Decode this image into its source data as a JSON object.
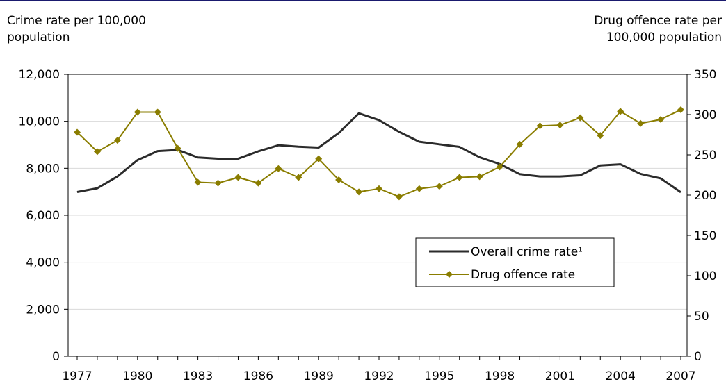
{
  "chart_data": {
    "type": "line",
    "x": [
      1977,
      1978,
      1979,
      1980,
      1981,
      1982,
      1983,
      1984,
      1985,
      1986,
      1987,
      1988,
      1989,
      1990,
      1991,
      1992,
      1993,
      1994,
      1995,
      1996,
      1997,
      1998,
      1999,
      2000,
      2001,
      2002,
      2003,
      2004,
      2005,
      2006,
      2007
    ],
    "x_tick_labels": [
      "1977",
      "1980",
      "1983",
      "1986",
      "1989",
      "1992",
      "1995",
      "1998",
      "2001",
      "2004",
      "2007"
    ],
    "ylabel_left": "Crime rate per 100,000\npopulation",
    "ylabel_right": "Drug offence rate per\n100,000 population",
    "ylim_left": [
      0,
      12000
    ],
    "ylim_right": [
      0,
      350
    ],
    "y_left_ticks": [
      "0",
      "2,000",
      "4,000",
      "6,000",
      "8,000",
      "10,000",
      "12,000"
    ],
    "y_right_ticks": [
      "0",
      "50",
      "100",
      "150",
      "200",
      "250",
      "300",
      "350"
    ],
    "grid": true,
    "legend_position": "lower-right",
    "series": [
      {
        "name": "Overall crime rate¹",
        "axis": "left",
        "color": "#2b2b2b",
        "marker": "none",
        "values": [
          6990,
          7150,
          7650,
          8350,
          8730,
          8780,
          8460,
          8410,
          8410,
          8720,
          8980,
          8920,
          8880,
          9500,
          10340,
          10050,
          9550,
          9130,
          9020,
          8910,
          8470,
          8180,
          7750,
          7650,
          7650,
          7700,
          8120,
          8170,
          7760,
          7570,
          6980
        ]
      },
      {
        "name": "Drug offence rate",
        "axis": "right",
        "color": "#8a7d00",
        "marker": "diamond",
        "values": [
          278,
          254,
          268,
          303,
          303,
          258,
          216,
          215,
          222,
          215,
          233,
          222,
          245,
          219,
          204,
          208,
          198,
          208,
          211,
          222,
          223,
          235,
          263,
          286,
          287,
          296,
          274,
          304,
          289,
          294,
          306
        ]
      }
    ]
  }
}
